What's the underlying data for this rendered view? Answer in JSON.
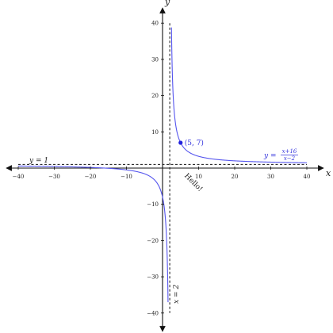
{
  "chart_data": {
    "type": "line",
    "xlabel": "x",
    "ylabel": "y",
    "xlim": [
      -42,
      42
    ],
    "ylim": [
      -44,
      44
    ],
    "x_ticks": [
      -40,
      -30,
      -20,
      -10,
      10,
      20,
      30,
      40
    ],
    "y_ticks": [
      -40,
      -30,
      -20,
      -10,
      10,
      20,
      30,
      40
    ],
    "x_tick_labels": [
      "−40",
      "−30",
      "−20",
      "−10",
      "10",
      "20",
      "30",
      "40"
    ],
    "y_tick_labels": [
      "−40",
      "−30",
      "−20",
      "−10",
      "10",
      "20",
      "30",
      "40"
    ],
    "grid": false,
    "series": [
      {
        "formula": "(x+16)/(x-2)",
        "color": "#5555ee",
        "domain": [
          -40,
          40
        ],
        "y_clip": [
          -40,
          40
        ]
      }
    ],
    "asymptotes": {
      "horizontal": {
        "y": 1,
        "label": "y = 1"
      },
      "vertical": {
        "x": 2,
        "label": "x = 2"
      }
    },
    "curve_label": {
      "lhs": "y =",
      "numerator": "x+16",
      "denominator": "x−2"
    },
    "point": {
      "x": 5,
      "y": 7,
      "label": "(5, 7)"
    },
    "note": {
      "text": "Hello!",
      "x": 6,
      "y": -2
    }
  }
}
